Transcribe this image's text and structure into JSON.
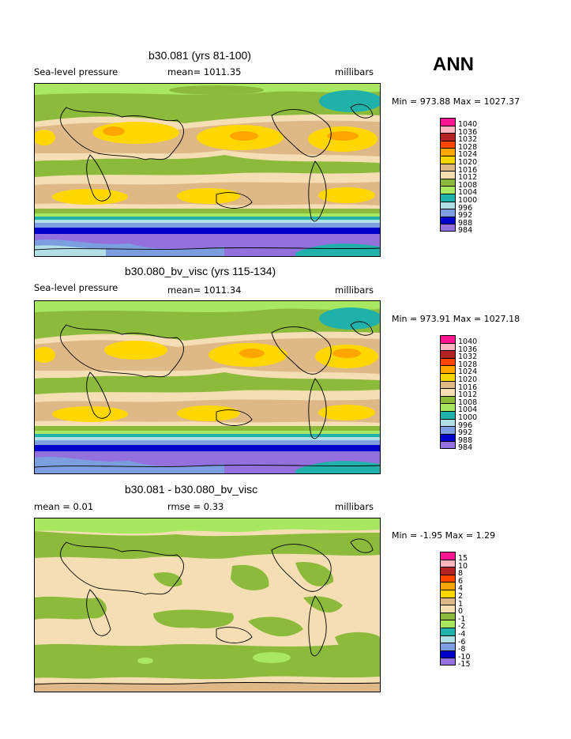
{
  "season": "ANN",
  "panels": [
    {
      "title": "b30.081 (yrs 81-100)",
      "left_label": "Sea-level pressure",
      "mean_label": "mean= 1011.35",
      "units": "millibars",
      "minmax": "Min = 973.88 Max = 1027.37",
      "legend": [
        "1040",
        "1036",
        "1032",
        "1028",
        "1024",
        "1020",
        "1016",
        "1012",
        "1008",
        "1004",
        "1000",
        "996",
        "992",
        "988",
        "984"
      ]
    },
    {
      "title": "b30.080_bv_visc (yrs 115-134)",
      "left_label": "Sea-level pressure",
      "mean_label": "mean= 1011.34",
      "units": "millibars",
      "minmax": "Min = 973.91 Max = 1027.18",
      "legend": [
        "1040",
        "1036",
        "1032",
        "1028",
        "1024",
        "1020",
        "1016",
        "1012",
        "1008",
        "1004",
        "1000",
        "996",
        "992",
        "988",
        "984"
      ]
    },
    {
      "title": "b30.081 - b30.080_bv_visc",
      "left_label": "mean =    0.01",
      "mean_label": "rmse =    0.33",
      "units": "millibars",
      "minmax": "Min =  -1.95 Max =    1.29",
      "legend": [
        "15",
        "10",
        "8",
        "6",
        "4",
        "2",
        "1",
        "0",
        "-1",
        "-2",
        "-4",
        "-6",
        "-8",
        "-10",
        "-15"
      ]
    }
  ],
  "colors": {
    "c1040": "#ff1493",
    "c1036": "#ffb6c1",
    "c1032": "#b22222",
    "c1028": "#ff4500",
    "c1024": "#ffa500",
    "c1020": "#ffd700",
    "c1016": "#deb887",
    "c1012": "#f5deb3",
    "c1008": "#8cbb3c",
    "c1004": "#a8e860",
    "c1000": "#20b2aa",
    "c996": "#b0e0e6",
    "c992": "#7b9ee0",
    "c988": "#0000cd",
    "c984": "#9370db"
  }
}
